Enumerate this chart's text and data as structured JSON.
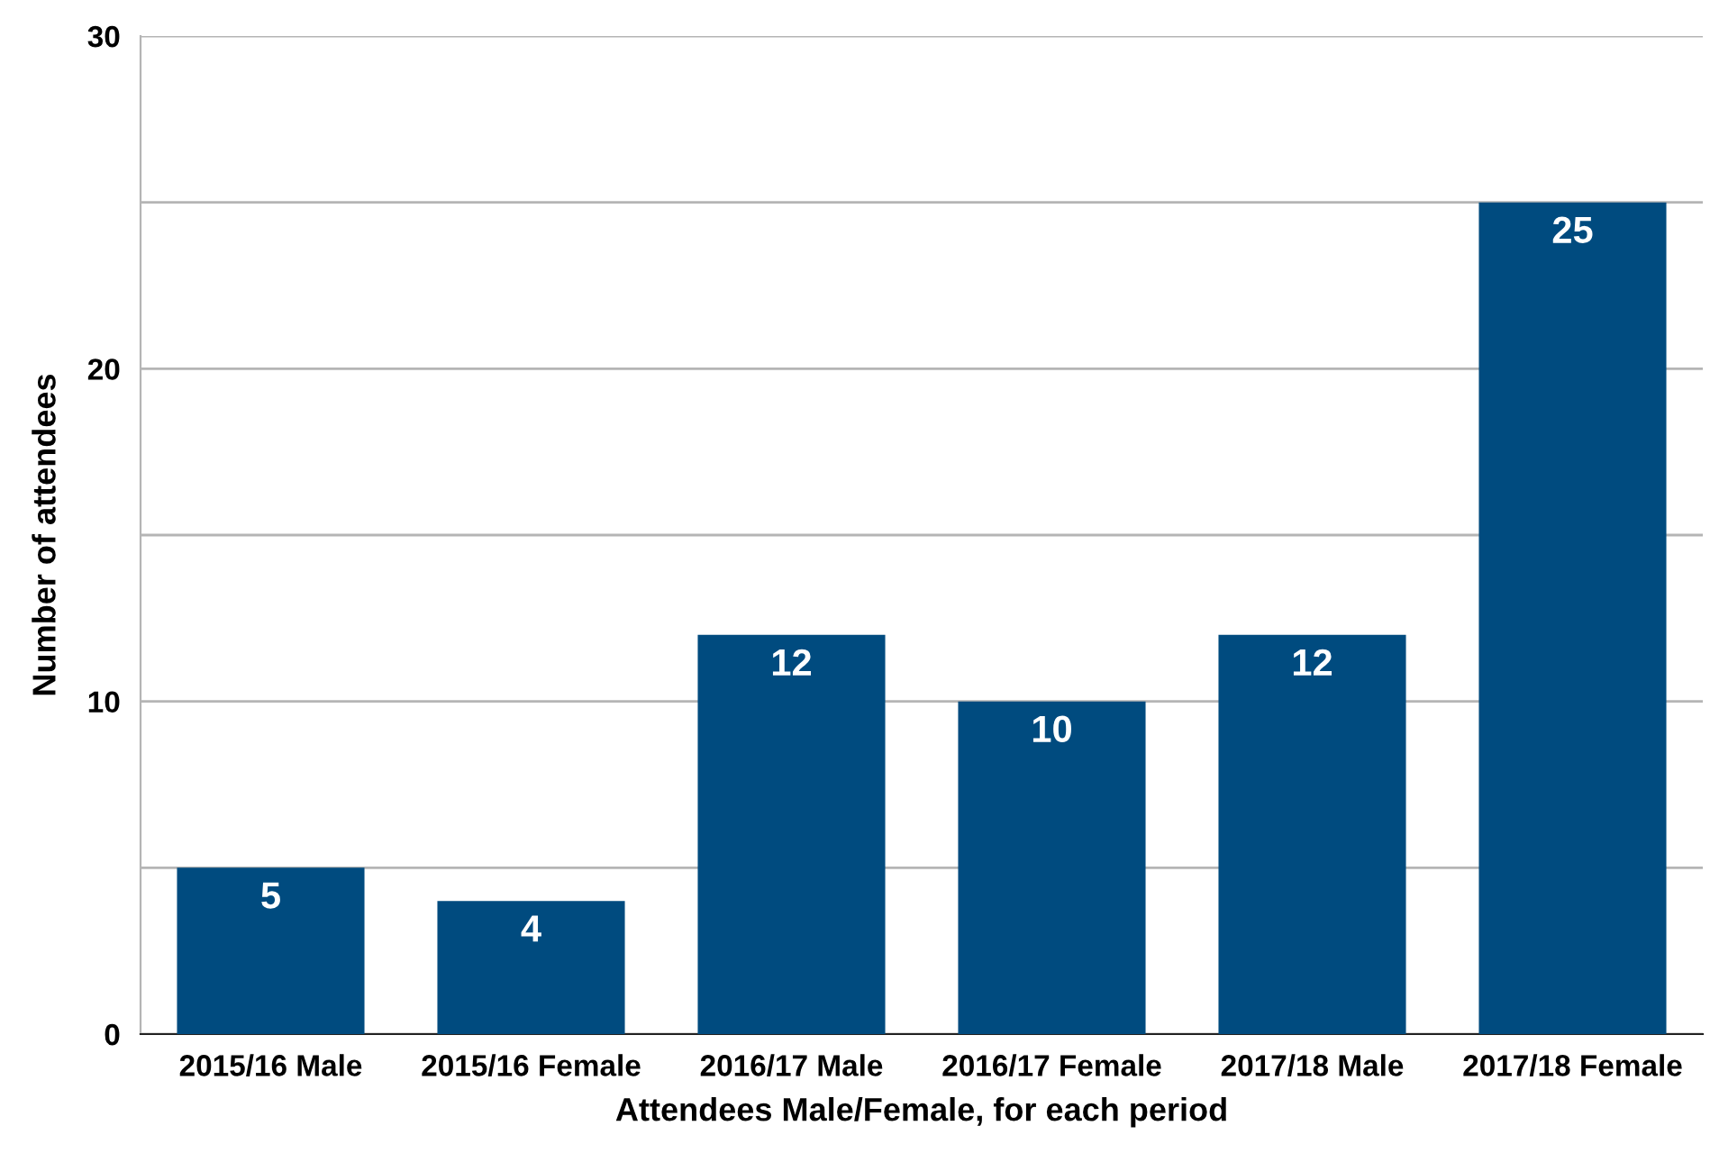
{
  "chart_data": {
    "type": "bar",
    "categories": [
      "2015/16 Male",
      "2015/16 Female",
      "2016/17 Male",
      "2016/17 Female",
      "2017/18 Male",
      "2017/18 Female"
    ],
    "values": [
      5,
      4,
      12,
      10,
      12,
      25
    ],
    "color": "#004b7f",
    "xlabel": "Attendees Male/Female, for each period",
    "ylabel": "Number of attendees",
    "ylim": [
      0,
      30
    ],
    "yticks": [
      0,
      {
        "value": 5,
        "label": null
      },
      10,
      {
        "value": 15,
        "label": null
      },
      20,
      {
        "value": 25,
        "label": null
      },
      30
    ],
    "grid": "y",
    "data_labels": true
  }
}
